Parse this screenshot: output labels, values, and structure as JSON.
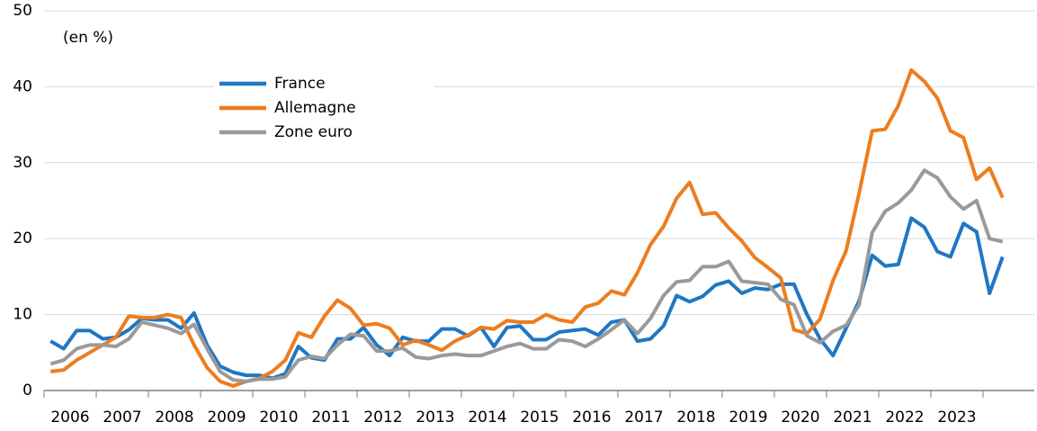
{
  "chart_data": {
    "type": "line",
    "annotation": "(en %)",
    "categories": [
      "2006",
      null,
      null,
      null,
      "2007",
      null,
      null,
      null,
      "2008",
      null,
      null,
      null,
      "2009",
      null,
      null,
      null,
      "2010",
      null,
      null,
      null,
      "2011",
      null,
      null,
      null,
      "2012",
      null,
      null,
      null,
      "2013",
      null,
      null,
      null,
      "2014",
      null,
      null,
      null,
      "2015",
      null,
      null,
      null,
      "2016",
      null,
      null,
      null,
      "2017",
      null,
      null,
      null,
      "2018",
      null,
      null,
      null,
      "2019",
      null,
      null,
      null,
      "2020",
      null,
      null,
      null,
      "2021",
      null,
      null,
      null,
      "2022",
      null,
      null,
      null,
      "2023",
      null,
      null,
      null,
      null,
      null
    ],
    "series": [
      {
        "name": "France",
        "color": "#1f77c4",
        "values": [
          6.5,
          5.5,
          7.9,
          7.9,
          6.8,
          7.0,
          8.0,
          9.5,
          9.3,
          9.3,
          8.2,
          10.2,
          6.0,
          3.2,
          2.4,
          2.0,
          2.0,
          1.6,
          2.2,
          5.8,
          4.3,
          4.0,
          6.8,
          6.8,
          8.3,
          6.0,
          4.6,
          7.0,
          6.5,
          6.5,
          8.1,
          8.1,
          7.2,
          8.3,
          5.8,
          8.3,
          8.5,
          6.7,
          6.7,
          7.7,
          7.9,
          8.1,
          7.3,
          9.0,
          9.3,
          6.5,
          6.8,
          8.5,
          12.5,
          11.7,
          12.4,
          13.9,
          14.4,
          12.8,
          13.5,
          13.3,
          14.0,
          14.0,
          10.0,
          6.8,
          4.6,
          8.2,
          11.8,
          17.8,
          16.4,
          16.6,
          22.7,
          21.5,
          18.3,
          17.6,
          22.0,
          20.9,
          12.8,
          17.6
        ]
      },
      {
        "name": "Allemagne",
        "color": "#ed7d1f",
        "values": [
          2.5,
          2.7,
          4.0,
          5.0,
          6.0,
          7.0,
          9.8,
          9.6,
          9.6,
          10.0,
          9.6,
          6.0,
          3.0,
          1.2,
          0.6,
          1.2,
          1.6,
          2.5,
          4.0,
          7.6,
          7.0,
          9.8,
          11.9,
          10.8,
          8.6,
          8.8,
          8.2,
          6.0,
          6.6,
          6.0,
          5.3,
          6.5,
          7.3,
          8.3,
          8.1,
          9.2,
          9.0,
          9.0,
          10.0,
          9.3,
          9.0,
          11.0,
          11.5,
          13.1,
          12.6,
          15.5,
          19.2,
          21.6,
          25.3,
          27.4,
          23.2,
          23.4,
          21.4,
          19.7,
          17.5,
          16.2,
          14.8,
          8.0,
          7.5,
          9.4,
          14.5,
          18.4,
          26.0,
          34.2,
          34.4,
          37.5,
          42.2,
          40.7,
          38.5,
          34.2,
          33.3,
          27.8,
          29.3,
          25.4
        ]
      },
      {
        "name": "Zone euro",
        "color": "#9a9a9a",
        "values": [
          3.5,
          4.0,
          5.5,
          6.0,
          6.0,
          5.8,
          6.8,
          9.0,
          8.6,
          8.2,
          7.5,
          8.7,
          5.5,
          2.5,
          1.4,
          1.2,
          1.5,
          1.5,
          1.8,
          4.0,
          4.5,
          4.2,
          6.0,
          7.4,
          7.2,
          5.2,
          5.2,
          5.6,
          4.4,
          4.2,
          4.6,
          4.8,
          4.6,
          4.6,
          5.2,
          5.8,
          6.2,
          5.5,
          5.5,
          6.7,
          6.5,
          5.8,
          6.8,
          8.0,
          9.3,
          7.5,
          9.5,
          12.5,
          14.3,
          14.5,
          16.3,
          16.3,
          17.0,
          14.4,
          14.2,
          14.0,
          12.0,
          11.3,
          7.2,
          6.3,
          7.8,
          8.6,
          11.3,
          20.8,
          23.6,
          24.7,
          26.4,
          29.0,
          28.0,
          25.5,
          23.9,
          25.0,
          20.0,
          19.6
        ]
      }
    ],
    "ylim": [
      0,
      50
    ],
    "yticks": [
      0,
      10,
      20,
      30,
      40,
      50
    ],
    "grid": true
  }
}
